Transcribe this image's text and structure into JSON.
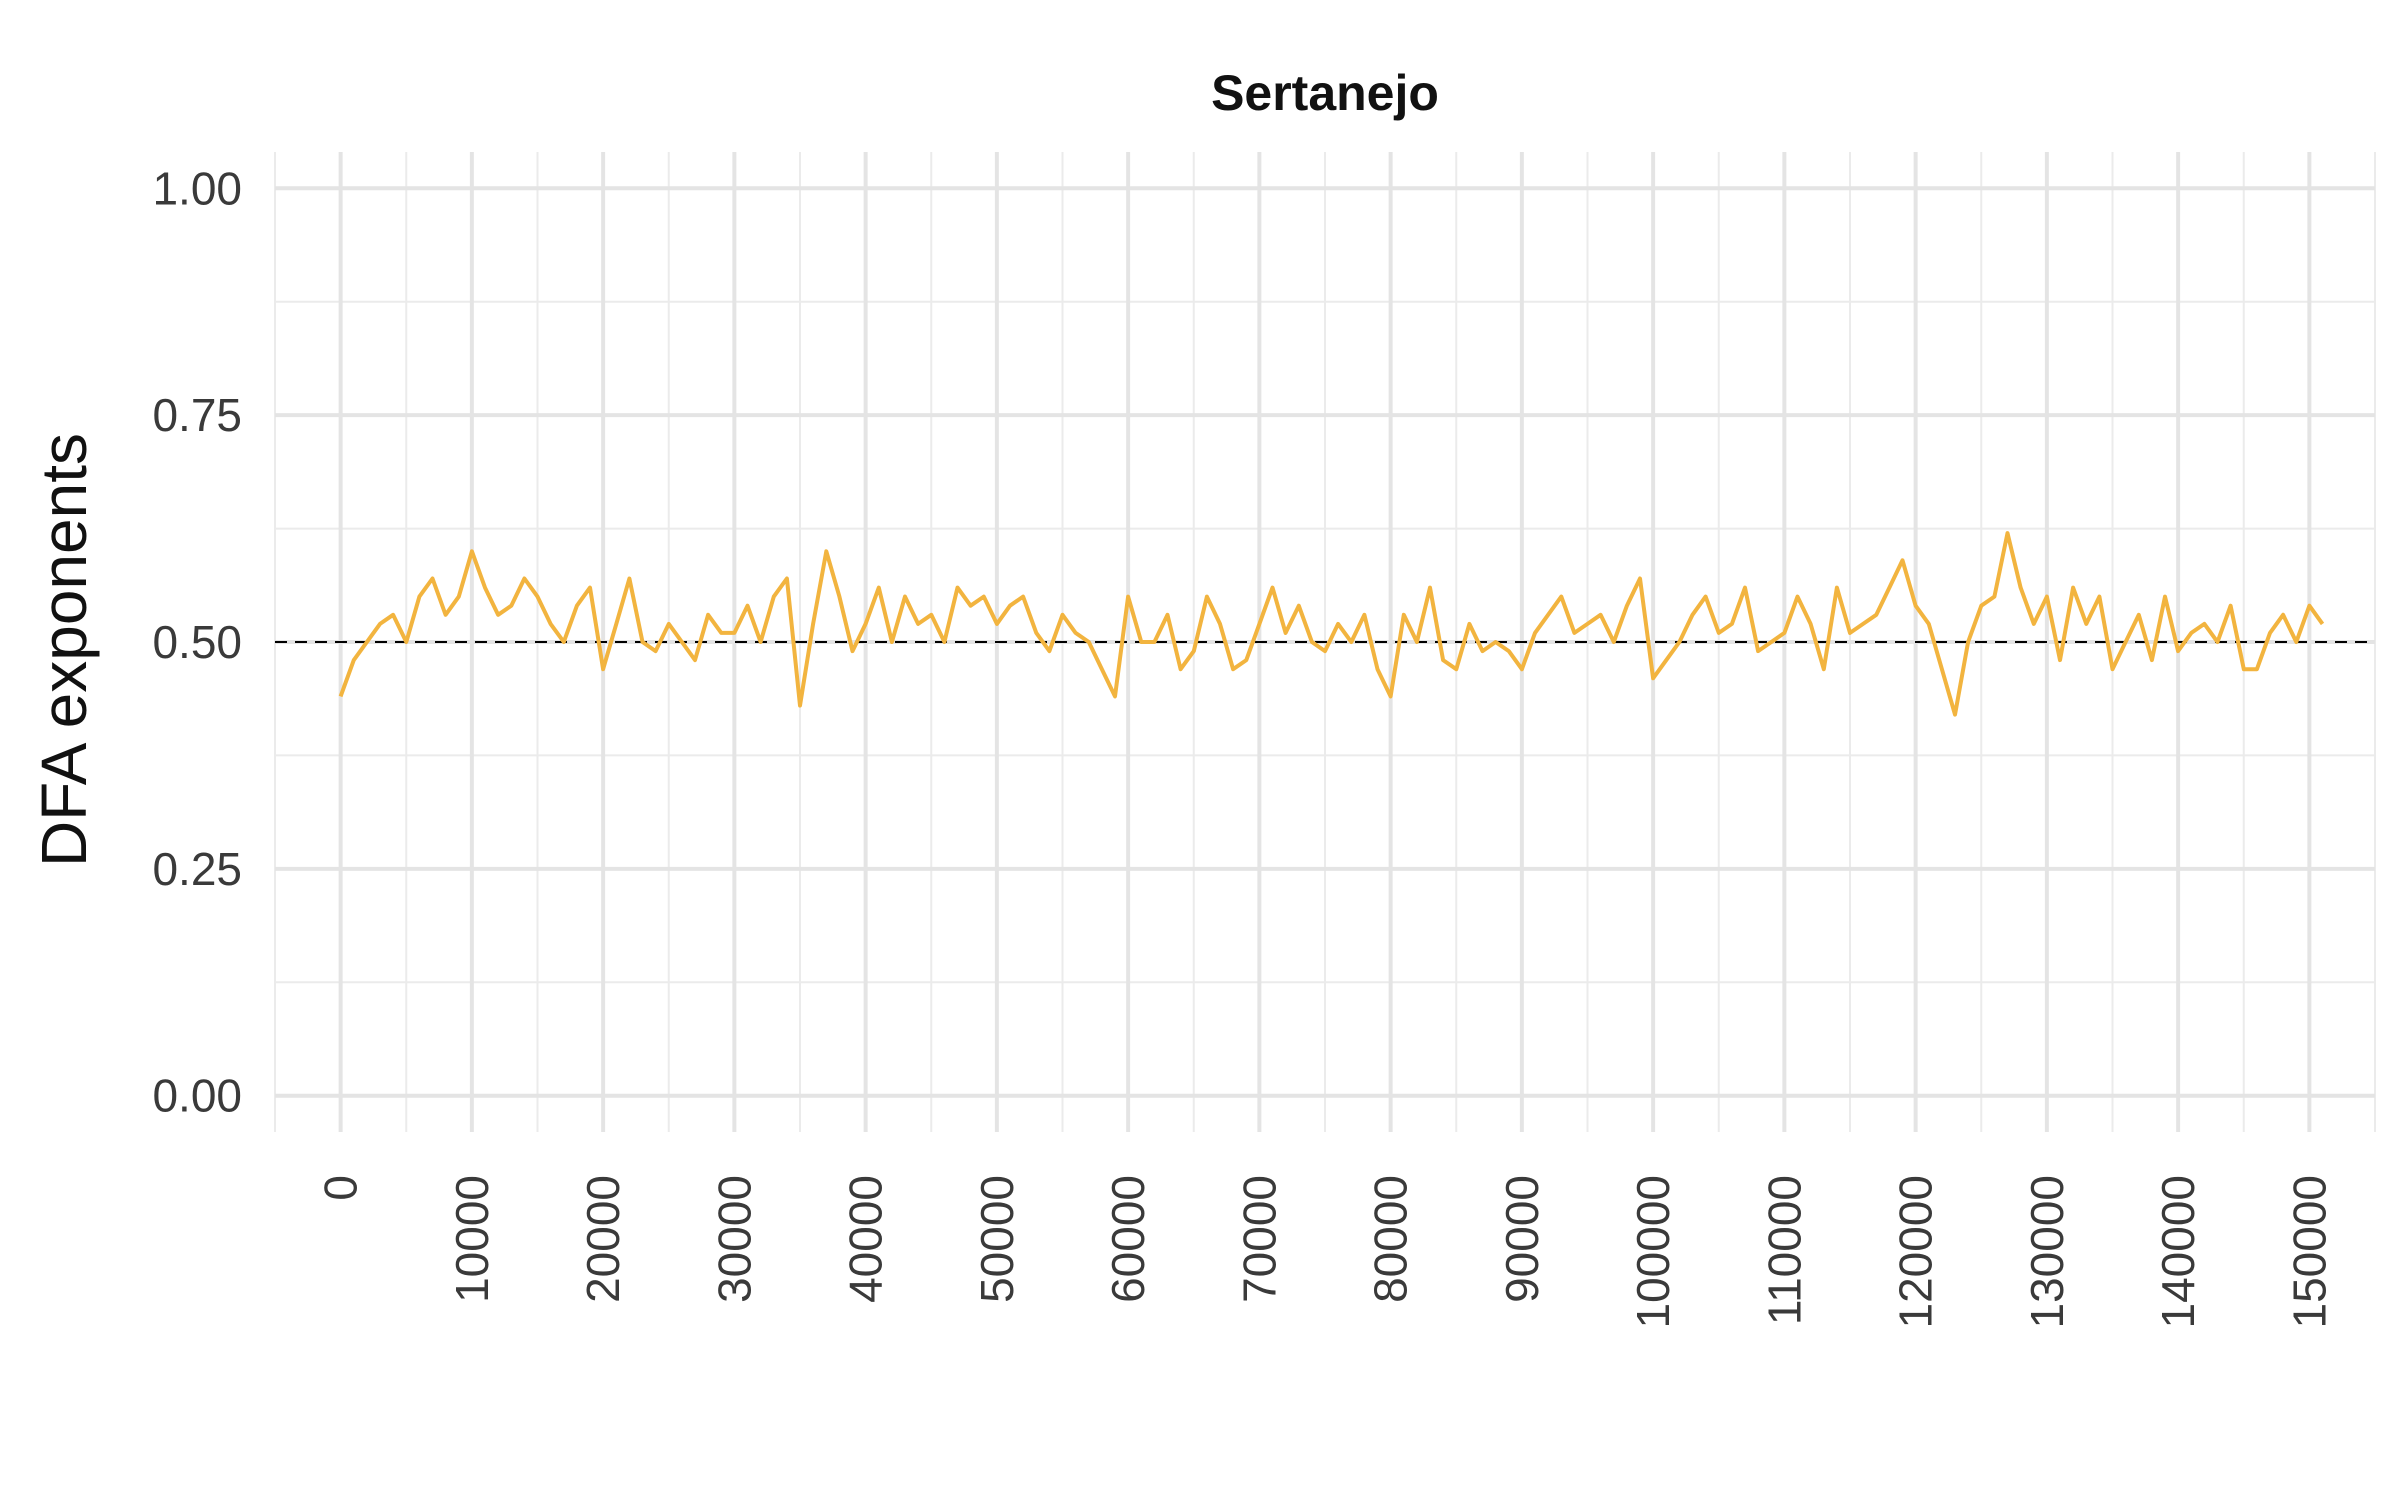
{
  "chart_data": {
    "type": "line",
    "title": "Sertanejo",
    "xlabel": "",
    "ylabel": "DFA exponents",
    "xlim": [
      -5000,
      155000
    ],
    "ylim": [
      -0.04,
      1.04
    ],
    "x_ticks": [
      0,
      10000,
      20000,
      30000,
      40000,
      50000,
      60000,
      70000,
      80000,
      90000,
      100000,
      110000,
      120000,
      130000,
      140000,
      150000
    ],
    "x_tick_labels": [
      "0",
      "10000",
      "20000",
      "30000",
      "40000",
      "50000",
      "60000",
      "70000",
      "80000",
      "90000",
      "100000",
      "110000",
      "120000",
      "130000",
      "140000",
      "150000"
    ],
    "y_ticks": [
      0.0,
      0.25,
      0.5,
      0.75,
      1.0
    ],
    "y_tick_labels": [
      "0.00",
      "0.25",
      "0.50",
      "0.75",
      "1.00"
    ],
    "reference_line": {
      "y": 0.5,
      "style": "dashed",
      "color": "#000000"
    },
    "grid": true,
    "series": [
      {
        "color": "#F2B43F",
        "x": [
          0,
          1000,
          2000,
          3000,
          4000,
          5000,
          6000,
          7000,
          8000,
          9000,
          10000,
          11000,
          12000,
          13000,
          14000,
          15000,
          16000,
          17000,
          18000,
          19000,
          20000,
          21000,
          22000,
          23000,
          24000,
          25000,
          26000,
          27000,
          28000,
          29000,
          30000,
          31000,
          32000,
          33000,
          34000,
          35000,
          36000,
          37000,
          38000,
          39000,
          40000,
          41000,
          42000,
          43000,
          44000,
          45000,
          46000,
          47000,
          48000,
          49000,
          50000,
          51000,
          52000,
          53000,
          54000,
          55000,
          56000,
          57000,
          58000,
          59000,
          60000,
          61000,
          62000,
          63000,
          64000,
          65000,
          66000,
          67000,
          68000,
          69000,
          70000,
          71000,
          72000,
          73000,
          74000,
          75000,
          76000,
          77000,
          78000,
          79000,
          80000,
          81000,
          82000,
          83000,
          84000,
          85000,
          86000,
          87000,
          88000,
          89000,
          90000,
          91000,
          92000,
          93000,
          94000,
          95000,
          96000,
          97000,
          98000,
          99000,
          100000,
          101000,
          102000,
          103000,
          104000,
          105000,
          106000,
          107000,
          108000,
          109000,
          110000,
          111000,
          112000,
          113000,
          114000,
          115000,
          116000,
          117000,
          118000,
          119000,
          120000,
          121000,
          122000,
          123000,
          124000,
          125000,
          126000,
          127000,
          128000,
          129000,
          130000,
          131000,
          132000,
          133000,
          134000,
          135000,
          136000,
          137000,
          138000,
          139000,
          140000,
          141000,
          142000,
          143000,
          144000,
          145000,
          146000,
          147000,
          148000,
          149000,
          150000,
          151000
        ],
        "y": [
          0.44,
          0.48,
          0.5,
          0.52,
          0.53,
          0.5,
          0.55,
          0.57,
          0.53,
          0.55,
          0.6,
          0.56,
          0.53,
          0.54,
          0.57,
          0.55,
          0.52,
          0.5,
          0.54,
          0.56,
          0.47,
          0.52,
          0.57,
          0.5,
          0.49,
          0.52,
          0.5,
          0.48,
          0.53,
          0.51,
          0.51,
          0.54,
          0.5,
          0.55,
          0.57,
          0.43,
          0.52,
          0.6,
          0.55,
          0.49,
          0.52,
          0.56,
          0.5,
          0.55,
          0.52,
          0.53,
          0.5,
          0.56,
          0.54,
          0.55,
          0.52,
          0.54,
          0.55,
          0.51,
          0.49,
          0.53,
          0.51,
          0.5,
          0.47,
          0.44,
          0.55,
          0.5,
          0.5,
          0.53,
          0.47,
          0.49,
          0.55,
          0.52,
          0.47,
          0.48,
          0.52,
          0.56,
          0.51,
          0.54,
          0.5,
          0.49,
          0.52,
          0.5,
          0.53,
          0.47,
          0.44,
          0.53,
          0.5,
          0.56,
          0.48,
          0.47,
          0.52,
          0.49,
          0.5,
          0.49,
          0.47,
          0.51,
          0.53,
          0.55,
          0.51,
          0.52,
          0.53,
          0.5,
          0.54,
          0.57,
          0.46,
          0.48,
          0.5,
          0.53,
          0.55,
          0.51,
          0.52,
          0.56,
          0.49,
          0.5,
          0.51,
          0.55,
          0.52,
          0.47,
          0.56,
          0.51,
          0.52,
          0.53,
          0.56,
          0.59,
          0.54,
          0.52,
          0.47,
          0.42,
          0.5,
          0.54,
          0.55,
          0.62,
          0.56,
          0.52,
          0.55,
          0.48,
          0.56,
          0.52,
          0.55,
          0.47,
          0.5,
          0.53,
          0.48,
          0.55,
          0.49,
          0.51,
          0.52,
          0.5,
          0.54,
          0.47,
          0.47,
          0.51,
          0.53,
          0.5,
          0.54,
          0.52
        ]
      }
    ]
  }
}
